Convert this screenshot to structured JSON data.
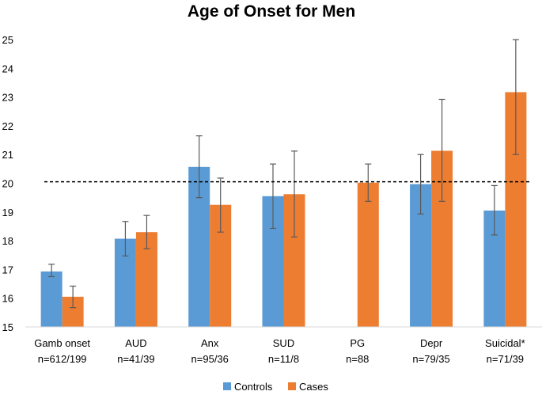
{
  "chart_data": {
    "type": "bar",
    "title": "Age of Onset for Men",
    "xlabel": "",
    "ylabel": "",
    "ylim": [
      15,
      25
    ],
    "yticks": [
      15,
      16,
      17,
      18,
      19,
      20,
      21,
      22,
      23,
      24,
      25
    ],
    "reference_line": 20.05,
    "grid": false,
    "legend_position": "bottom",
    "categories": [
      {
        "label": "Gamb onset",
        "n": "n=612/199"
      },
      {
        "label": "AUD",
        "n": "n=41/39"
      },
      {
        "label": "Anx",
        "n": "n=95/36"
      },
      {
        "label": "SUD",
        "n": "n=11/8"
      },
      {
        "label": "PG",
        "n": "n=88"
      },
      {
        "label": "Depr",
        "n": "n=79/35"
      },
      {
        "label": "Suicidal*",
        "n": "n=71/39"
      }
    ],
    "series": [
      {
        "name": "Controls",
        "color": "#5B9BD5",
        "values": [
          16.93,
          18.07,
          20.57,
          19.55,
          null,
          19.97,
          19.05
        ],
        "error_low": [
          16.75,
          17.47,
          19.5,
          18.43,
          null,
          18.93,
          18.2
        ],
        "error_high": [
          17.18,
          18.67,
          21.65,
          20.67,
          null,
          21.0,
          19.92
        ]
      },
      {
        "name": "Cases",
        "color": "#ED7D31",
        "values": [
          16.05,
          18.3,
          19.25,
          19.62,
          20.02,
          21.13,
          23.17
        ],
        "error_low": [
          15.67,
          17.72,
          18.3,
          18.13,
          19.37,
          19.37,
          21.0
        ],
        "error_high": [
          16.42,
          18.88,
          20.18,
          21.12,
          20.67,
          22.92,
          25.0
        ]
      }
    ]
  }
}
